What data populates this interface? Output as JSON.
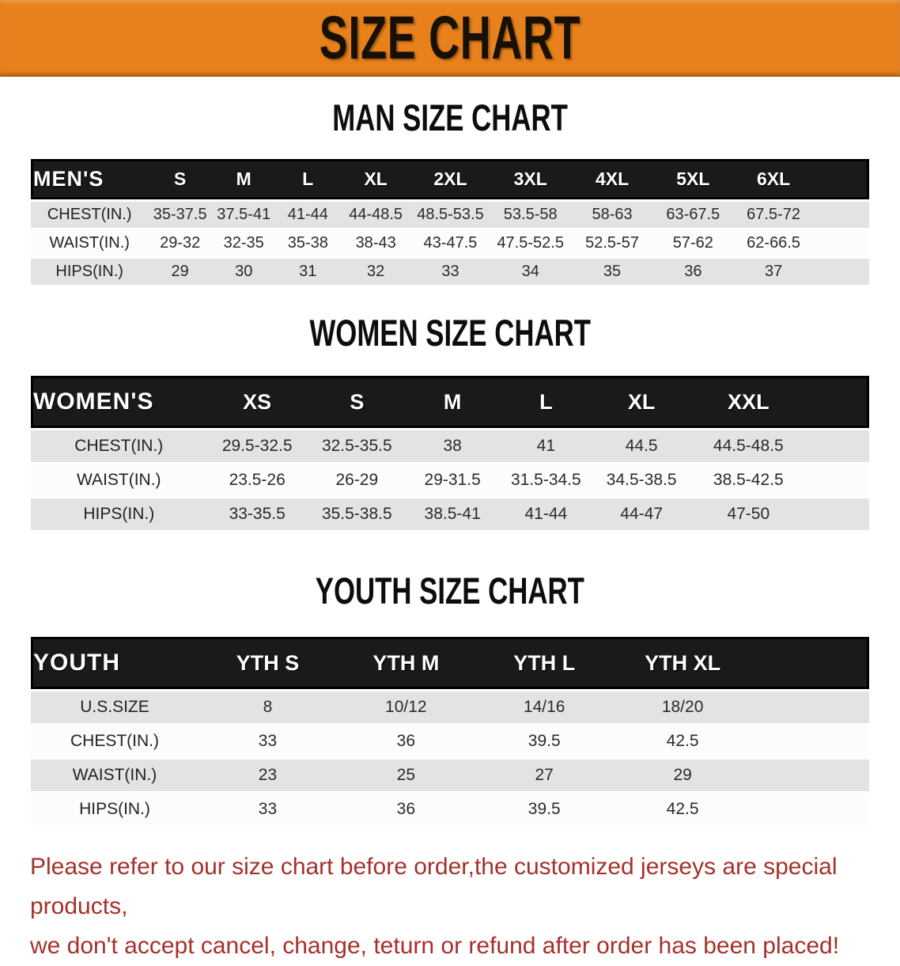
{
  "banner": {
    "title": "SIZE CHART",
    "bg_color": "#e8811b"
  },
  "colors": {
    "header_row_bg": "#1a1a1a",
    "row_gray": "#e3e3e3",
    "row_white": "#fcfcfc"
  },
  "sections": [
    {
      "heading": "MAN SIZE CHART",
      "table": {
        "header": [
          "MEN'S",
          "S",
          "M",
          "L",
          "XL",
          "2XL",
          "3XL",
          "4XL",
          "5XL",
          "6XL"
        ],
        "rows": [
          [
            "CHEST(IN.)",
            "35-37.5",
            "37.5-41",
            "41-44",
            "44-48.5",
            "48.5-53.5",
            "53.5-58",
            "58-63",
            "63-67.5",
            "67.5-72"
          ],
          [
            "WAIST(IN.)",
            "29-32",
            "32-35",
            "35-38",
            "38-43",
            "43-47.5",
            "47.5-52.5",
            "52.5-57",
            "57-62",
            "62-66.5"
          ],
          [
            "HIPS(IN.)",
            "29",
            "30",
            "31",
            "32",
            "33",
            "34",
            "35",
            "36",
            "37"
          ]
        ]
      }
    },
    {
      "heading": "WOMEN SIZE CHART",
      "table": {
        "header": [
          "WOMEN'S",
          "XS",
          "S",
          "M",
          "L",
          "XL",
          "XXL"
        ],
        "rows": [
          [
            "CHEST(IN.)",
            "29.5-32.5",
            "32.5-35.5",
            "38",
            "41",
            "44.5",
            "44.5-48.5"
          ],
          [
            "WAIST(IN.)",
            "23.5-26",
            "26-29",
            "29-31.5",
            "31.5-34.5",
            "34.5-38.5",
            "38.5-42.5"
          ],
          [
            "HIPS(IN.)",
            "33-35.5",
            "35.5-38.5",
            "38.5-41",
            "41-44",
            "44-47",
            "47-50"
          ]
        ]
      }
    },
    {
      "heading": "YOUTH SIZE CHART",
      "table": {
        "header": [
          "YOUTH",
          "YTH S",
          "YTH M",
          "YTH L",
          "YTH XL"
        ],
        "rows": [
          [
            "U.S.SIZE",
            "8",
            "10/12",
            "14/16",
            "18/20"
          ],
          [
            "CHEST(IN.)",
            "33",
            "36",
            "39.5",
            "42.5"
          ],
          [
            "WAIST(IN.)",
            "23",
            "25",
            "27",
            "29"
          ],
          [
            "HIPS(IN.)",
            "33",
            "36",
            "39.5",
            "42.5"
          ]
        ]
      }
    }
  ],
  "footer": {
    "color": "#a6302a",
    "lines": [
      "Please refer to our size chart before order,the customized jerseys are special products,",
      "we don't accept cancel, change, teturn or refund after order has been placed!"
    ]
  }
}
